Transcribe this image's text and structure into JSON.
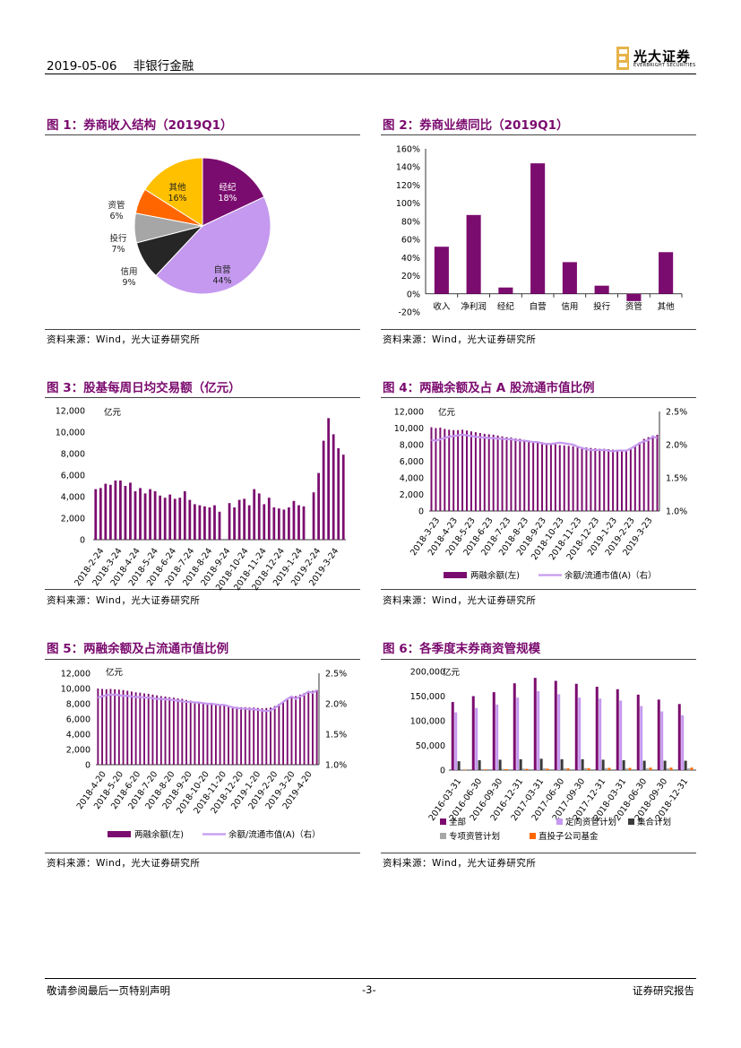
{
  "header": {
    "date": "2019-05-06",
    "sector": "非银行金融",
    "logo_cn": "光大证券",
    "logo_en": "EVERBRIGHT SECURITIES"
  },
  "footer": {
    "left": "敬请参阅最后一页特别声明",
    "center": "-3-",
    "right": "证券研究报告"
  },
  "figures": {
    "f1": {
      "title": "图 1：券商收入结构（2019Q1）",
      "source": "资料来源：Wind，光大证券研究所"
    },
    "f2": {
      "title": "图 2：券商业绩同比（2019Q1）",
      "source": "资料来源：Wind，光大证券研究所"
    },
    "f3": {
      "title": "图 3：股基每周日均交易额（亿元）",
      "source": "资料来源：Wind，光大证券研究所"
    },
    "f4": {
      "title": "图 4：两融余额及占 A 股流通市值比例",
      "source": "资料来源：Wind，光大证券研究所"
    },
    "f5": {
      "title": "图 5：两融余额及占流通市值比例",
      "source": "资料来源：Wind，光大证券研究所"
    },
    "f6": {
      "title": "图 6：各季度末券商资管规模",
      "source": "资料来源：Wind，光大证券研究所"
    }
  },
  "colors": {
    "purple": "#7b0c6f",
    "lavender": "#c599ef",
    "yellow": "#ffc000",
    "orange": "#ff6600",
    "gray": "#a6a6a6",
    "dark": "#262626",
    "title": "#7a0a6e"
  },
  "chart_data": [
    {
      "id": "f1",
      "type": "pie",
      "title": "券商收入结构（2019Q1）",
      "slices": [
        {
          "name": "经纪",
          "pct": "18%",
          "value": 18,
          "color": "#7b0c6f"
        },
        {
          "name": "自营",
          "pct": "44%",
          "value": 44,
          "color": "#c599ef"
        },
        {
          "name": "信用",
          "pct": "9%",
          "value": 9,
          "color": "#262626"
        },
        {
          "name": "投行",
          "pct": "7%",
          "value": 7,
          "color": "#a6a6a6"
        },
        {
          "name": "资管",
          "pct": "6%",
          "value": 6,
          "color": "#ff6600"
        },
        {
          "name": "其他",
          "pct": "16%",
          "value": 16,
          "color": "#ffc000"
        }
      ]
    },
    {
      "id": "f2",
      "type": "bar",
      "title": "券商业绩同比（2019Q1）",
      "categories": [
        "收入",
        "净利润",
        "经纪",
        "自营",
        "信用",
        "投行",
        "资管",
        "其他"
      ],
      "values": [
        52,
        87,
        7,
        144,
        35,
        9,
        -8,
        46
      ],
      "ylim": [
        -20,
        160
      ],
      "ticks": [
        "-20%",
        "0%",
        "20%",
        "40%",
        "60%",
        "80%",
        "100%",
        "120%",
        "140%",
        "160%"
      ]
    },
    {
      "id": "f3",
      "type": "bar",
      "title": "股基每周日均交易额（亿元）",
      "unit": "亿元",
      "ylim": [
        0,
        12000
      ],
      "ticks": [
        "0",
        "2,000",
        "4,000",
        "6,000",
        "8,000",
        "10,000",
        "12,000"
      ],
      "xticks": [
        "2018-2-24",
        "2018-3-24",
        "2018-4-24",
        "2018-5-24",
        "2018-6-24",
        "2018-7-24",
        "2018-8-24",
        "2018-9-24",
        "2018-10-24",
        "2018-11-24",
        "2018-12-24",
        "2019-1-24",
        "2019-2-24",
        "2019-3-24"
      ],
      "values": [
        4700,
        4800,
        5200,
        5100,
        5500,
        5500,
        5000,
        5300,
        4500,
        4800,
        4300,
        4700,
        4500,
        4100,
        3900,
        4200,
        3800,
        3900,
        4500,
        3700,
        3300,
        3200,
        3100,
        3000,
        3200,
        2600,
        0,
        3400,
        3000,
        3700,
        3800,
        3200,
        4700,
        4300,
        3300,
        3900,
        3000,
        2900,
        2800,
        3000,
        3600,
        3200,
        3100,
        0,
        4400,
        6200,
        9200,
        11300,
        9800,
        8500,
        7900
      ]
    },
    {
      "id": "f4",
      "type": "bar+line",
      "title": "两融余额及占 A 股流通市值比例",
      "unit": "亿元",
      "legend": [
        "两融余额(左)",
        "余额/流通市值(A)（右）"
      ],
      "ylim": [
        0,
        12000
      ],
      "ticks": [
        "0",
        "2,000",
        "4,000",
        "6,000",
        "8,000",
        "10,000",
        "12,000"
      ],
      "y2lim": [
        1.0,
        2.5
      ],
      "ticks2": [
        "1.0%",
        "1.5%",
        "2.0%",
        "2.5%"
      ],
      "xticks": [
        "2018-3-23",
        "2018-4-23",
        "2018-5-23",
        "2018-6-23",
        "2018-7-23",
        "2018-8-23",
        "2018-9-23",
        "2018-10-23",
        "2018-11-23",
        "2018-12-23",
        "2019-1-23",
        "2019-2-23",
        "2019-3-23"
      ],
      "values": [
        10100,
        10000,
        10050,
        9900,
        9800,
        9750,
        9750,
        9800,
        9700,
        9600,
        9500,
        9400,
        9300,
        9250,
        9200,
        9100,
        9000,
        8900,
        8850,
        8750,
        8700,
        8600,
        8500,
        8400,
        8350,
        8300,
        8200,
        8100,
        8050,
        7950,
        7900,
        7850,
        7800,
        7750,
        7700,
        7650,
        7600,
        7550,
        7500,
        7500,
        7450,
        7400,
        7400,
        7350,
        7400,
        7600,
        7900,
        8300,
        8700,
        8900,
        9100,
        9200
      ],
      "ratio": [
        2.07,
        2.06,
        2.08,
        2.1,
        2.12,
        2.13,
        2.14,
        2.15,
        2.14,
        2.13,
        2.12,
        2.11,
        2.11,
        2.1,
        2.1,
        2.09,
        2.09,
        2.08,
        2.08,
        2.07,
        2.06,
        2.06,
        2.05,
        2.04,
        2.04,
        2.02,
        2.01,
        2.01,
        2.02,
        2.03,
        2.02,
        2.01,
        2.0,
        1.97,
        1.95,
        1.93,
        1.92,
        1.92,
        1.92,
        1.92,
        1.91,
        1.9,
        1.91,
        1.91,
        1.91,
        1.94,
        1.98,
        2.02,
        2.05,
        2.07,
        2.12,
        2.1
      ]
    },
    {
      "id": "f5",
      "type": "bar+line",
      "title": "两融余额及占流通市值比例",
      "unit": "亿元",
      "legend": [
        "两融余额(左)",
        "余额/流通市值(A)（右）"
      ],
      "ylim": [
        0,
        12000
      ],
      "ticks": [
        "0",
        "2,000",
        "4,000",
        "6,000",
        "8,000",
        "10,000",
        "12,000"
      ],
      "y2lim": [
        1.0,
        2.5
      ],
      "ticks2": [
        "1.0%",
        "1.5%",
        "2.0%",
        "2.5%"
      ],
      "xticks": [
        "2018-4-20",
        "2018-5-20",
        "2018-6-20",
        "2018-7-20",
        "2018-8-20",
        "2018-9-20",
        "2018-10-20",
        "2018-11-20",
        "2018-12-20",
        "2019-1-20",
        "2019-2-20",
        "2019-3-20",
        "2019-4-20"
      ],
      "values": [
        10000,
        9950,
        9900,
        9950,
        9900,
        9850,
        9800,
        9700,
        9600,
        9500,
        9450,
        9350,
        9300,
        9200,
        9100,
        9000,
        8950,
        8850,
        8800,
        8700,
        8650,
        8500,
        8400,
        8300,
        8200,
        8100,
        8050,
        7950,
        7900,
        7850,
        7800,
        7700,
        7650,
        7600,
        7550,
        7550,
        7500,
        7500,
        7450,
        7400,
        7450,
        7500,
        7700,
        8000,
        8300,
        8600,
        8900,
        9000,
        9200,
        9400,
        9600,
        9700,
        9800
      ],
      "ratio": [
        2.1,
        2.12,
        2.14,
        2.15,
        2.15,
        2.14,
        2.13,
        2.13,
        2.12,
        2.11,
        2.11,
        2.1,
        2.1,
        2.09,
        2.08,
        2.08,
        2.07,
        2.07,
        2.06,
        2.05,
        2.04,
        2.03,
        2.03,
        2.02,
        2.02,
        2.01,
        2.0,
        2.0,
        1.99,
        1.98,
        1.98,
        1.96,
        1.94,
        1.93,
        1.92,
        1.92,
        1.91,
        1.91,
        1.9,
        1.89,
        1.88,
        1.89,
        1.93,
        1.98,
        2.03,
        2.08,
        2.12,
        2.08,
        2.12,
        2.15,
        2.2,
        2.18,
        2.22
      ]
    },
    {
      "id": "f6",
      "type": "grouped-bar",
      "title": "各季度末券商资管规模",
      "unit": "亿元",
      "ylim": [
        0,
        200000
      ],
      "ticks": [
        "0",
        "50,000",
        "100,000",
        "150,000",
        "200,000"
      ],
      "categories": [
        "2016-03-31",
        "2016-06-30",
        "2016-09-30",
        "2016-12-31",
        "2017-03-31",
        "2017-06-30",
        "2017-09-30",
        "2017-12-31",
        "2018-03-31",
        "2018-06-30",
        "2018-09-30",
        "2018-12-31"
      ],
      "series": [
        {
          "name": "全部",
          "color": "#7b0c6f",
          "values": [
            138000,
            150000,
            158000,
            176000,
            187000,
            181000,
            175000,
            169000,
            164000,
            153000,
            143000,
            134000
          ]
        },
        {
          "name": "定向资管计划",
          "color": "#c599ef",
          "values": [
            117000,
            126000,
            133000,
            147000,
            160000,
            154000,
            147000,
            145000,
            141000,
            130000,
            119000,
            111000
          ]
        },
        {
          "name": "集合计划",
          "color": "#3a3a3a",
          "values": [
            18000,
            20000,
            21000,
            22000,
            23000,
            22000,
            22000,
            21000,
            20000,
            19000,
            19000,
            19000
          ]
        },
        {
          "name": "专项资管计划",
          "color": "#a6a6a6",
          "values": [
            1500,
            2000,
            2500,
            3000,
            3500,
            3500,
            4000,
            4000,
            3500,
            3500,
            3500,
            3500
          ]
        },
        {
          "name": "直投子公司基金",
          "color": "#ff6600",
          "values": [
            1000,
            1500,
            2000,
            2500,
            3000,
            3500,
            4000,
            4500,
            4500,
            5000,
            5000,
            5000
          ]
        }
      ]
    }
  ]
}
